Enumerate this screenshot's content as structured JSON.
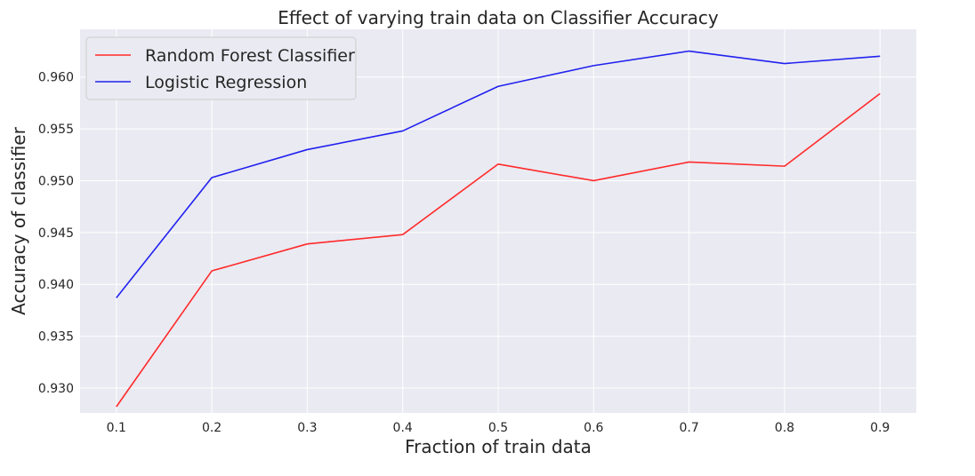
{
  "chart_data": {
    "type": "line",
    "title": "Effect of varying train data on Classifier Accuracy",
    "xlabel": "Fraction of train data",
    "ylabel": "Accuracy of classifier",
    "x": [
      0.1,
      0.2,
      0.3,
      0.4,
      0.5,
      0.6,
      0.7,
      0.8,
      0.9
    ],
    "x_ticks": [
      "0.1",
      "0.2",
      "0.3",
      "0.4",
      "0.5",
      "0.6",
      "0.7",
      "0.8",
      "0.9"
    ],
    "y_ticks": [
      {
        "value": 0.93,
        "label": "0.930"
      },
      {
        "value": 0.935,
        "label": "0.935"
      },
      {
        "value": 0.94,
        "label": "0.940"
      },
      {
        "value": 0.945,
        "label": "0.945"
      },
      {
        "value": 0.95,
        "label": "0.950"
      },
      {
        "value": 0.955,
        "label": "0.955"
      },
      {
        "value": 0.96,
        "label": "0.960"
      }
    ],
    "xlim": [
      0.062,
      0.938
    ],
    "ylim": [
      0.9276,
      0.9646
    ],
    "grid": true,
    "legend_position": "top-left",
    "series": [
      {
        "name": "Random Forest Classifier",
        "color": "#ff2a2a",
        "values": [
          0.9282,
          0.9413,
          0.9439,
          0.9448,
          0.9516,
          0.95,
          0.9518,
          0.9514,
          0.9584
        ]
      },
      {
        "name": "Logistic Regression",
        "color": "#2121f0",
        "values": [
          0.9387,
          0.9503,
          0.953,
          0.9548,
          0.9591,
          0.9611,
          0.9625,
          0.9613,
          0.962
        ]
      }
    ]
  },
  "colors": {
    "plot_background": "#eaeaf2",
    "grid": "#ffffff",
    "text": "#262626"
  }
}
